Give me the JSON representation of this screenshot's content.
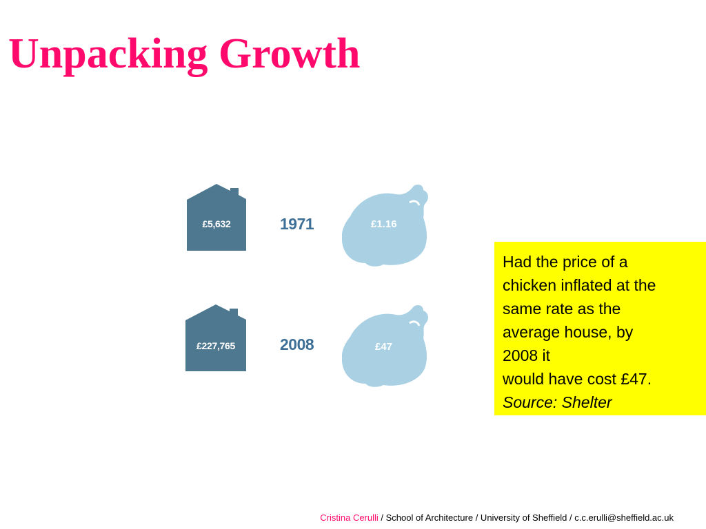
{
  "slide": {
    "title": "Unpacking Growth"
  },
  "infographic": {
    "rows": [
      {
        "year": "1971",
        "house_price": "£5,632",
        "chicken_price": "£1.16"
      },
      {
        "year": "2008",
        "house_price": "£227,765",
        "chicken_price": "£47"
      }
    ],
    "colors": {
      "house": "#4e7790",
      "chicken": "#a9d0e3",
      "year": "#3e6f96"
    }
  },
  "note": {
    "lines": [
      "Had the price of a",
      "chicken inflated at the",
      "same rate as the",
      "average house, by",
      "2008 it",
      "would have cost £47."
    ],
    "source": "Source: Shelter",
    "background": "#ffff00"
  },
  "footer": {
    "author": "Cristina Cerulli",
    "rest": " / School of Architecture / University of Sheffield / c.c.erulli@sheffield.ac.uk"
  },
  "colors": {
    "accent": "#ff0a6c"
  }
}
